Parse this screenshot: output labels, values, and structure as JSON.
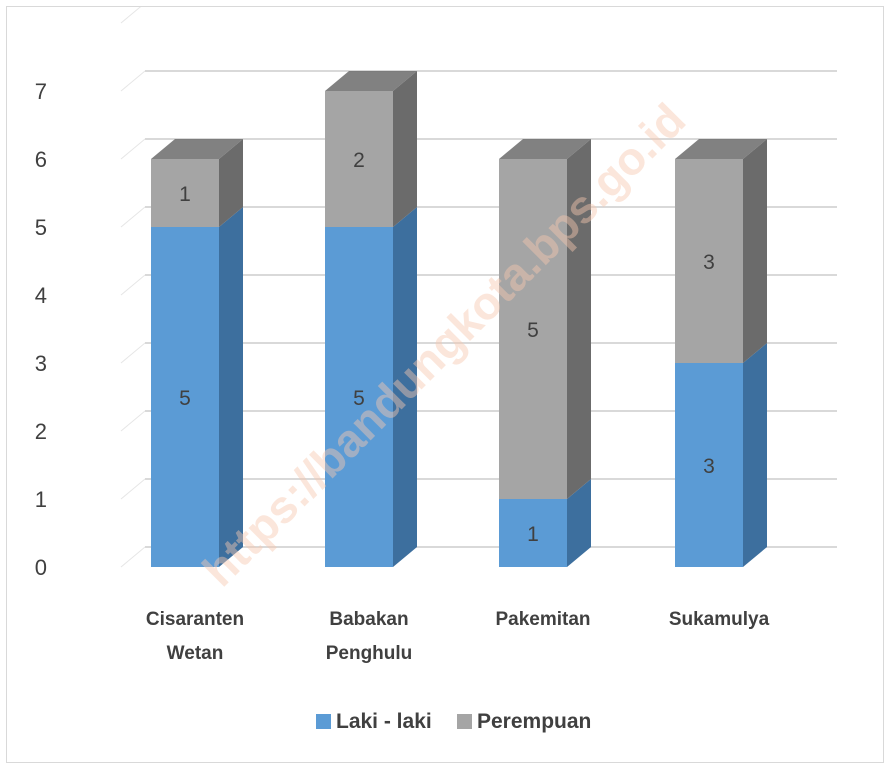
{
  "watermark": "https://bandungkota.bps.go.id",
  "chart_data": {
    "type": "bar",
    "stacked": true,
    "three_d": true,
    "categories": [
      [
        "Cisaranten",
        "Wetan"
      ],
      [
        "Babakan",
        "Penghulu"
      ],
      [
        "Pakemitan"
      ],
      [
        "Sukamulya"
      ]
    ],
    "series": [
      {
        "name": "Laki - laki",
        "values": [
          5,
          5,
          1,
          3
        ],
        "color": "#5b9bd5",
        "side_color": "#3d6f9e"
      },
      {
        "name": "Perempuan",
        "values": [
          1,
          2,
          5,
          3
        ],
        "color": "#a5a5a5",
        "side_color": "#6b6b6b"
      }
    ],
    "y_ticks": [
      0,
      1,
      2,
      3,
      4,
      5,
      6,
      7
    ],
    "ylim": [
      0,
      7
    ],
    "grid": true,
    "legend_position": "bottom",
    "data_labels": true
  }
}
